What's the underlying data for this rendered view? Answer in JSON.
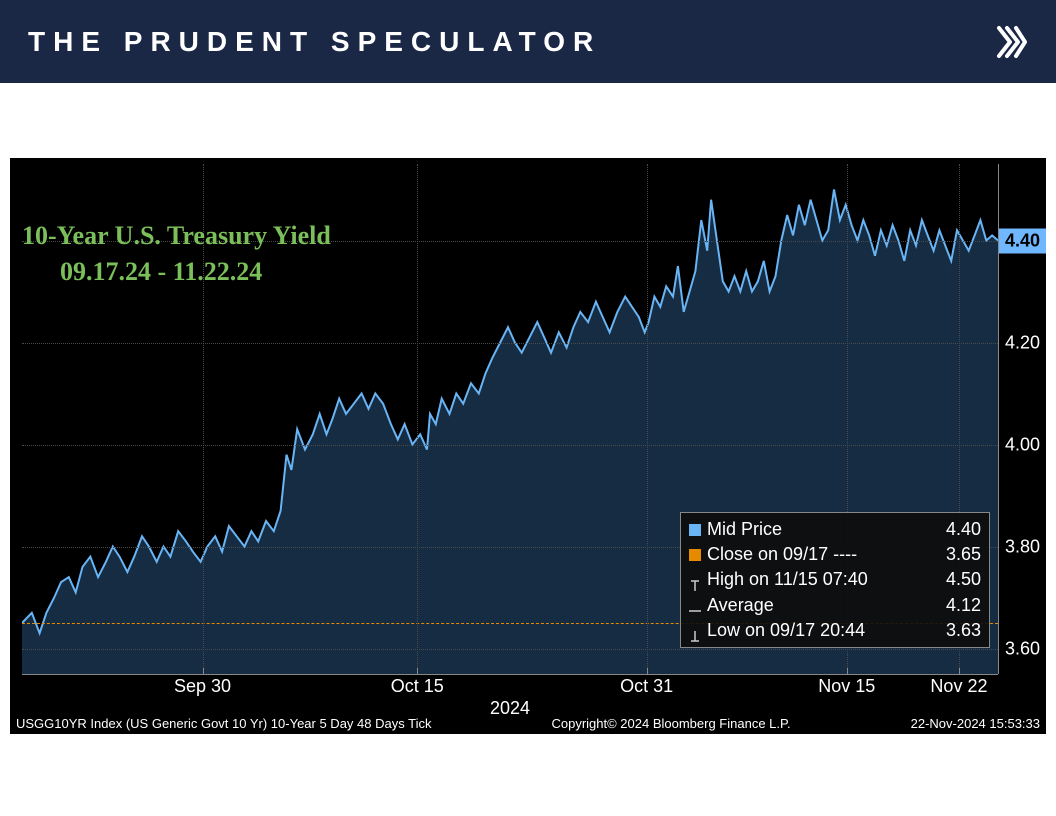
{
  "header": {
    "brand": "THE PRUDENT SPECULATOR"
  },
  "chart": {
    "type": "line-area",
    "title_line1": "10-Year U.S. Treasury Yield",
    "title_line2": "09.17.24 - 11.22.24",
    "title_color": "#7bbf5a",
    "title_fontsize": 26,
    "background_color": "#000000",
    "line_color": "#69b4f5",
    "area_fill_color": "rgba(40,80,120,0.55)",
    "grid_color": "#4a4a4a",
    "baseline_color": "#e68a00",
    "axis_label_color": "#ffffff",
    "axis_fontsize": 18,
    "current_badge_bg": "#6fb8ff",
    "current_badge_value": "4.40",
    "y_axis": {
      "min": 3.55,
      "max": 4.55,
      "ticks": [
        3.6,
        3.8,
        4.0,
        4.2,
        4.4
      ],
      "tick_labels": [
        "3.60",
        "3.80",
        "4.00",
        "4.20",
        "4.40"
      ]
    },
    "x_axis": {
      "ticks": [
        {
          "pos": 0.185,
          "label": "Sep 30"
        },
        {
          "pos": 0.405,
          "label": "Oct 15"
        },
        {
          "pos": 0.64,
          "label": "Oct 31"
        },
        {
          "pos": 0.845,
          "label": "Nov 15"
        },
        {
          "pos": 0.96,
          "label": "Nov 22"
        }
      ],
      "year_label": "2024",
      "year_pos": 0.5
    },
    "baseline_value": 3.65,
    "series": [
      [
        0.0,
        3.65
      ],
      [
        0.01,
        3.67
      ],
      [
        0.018,
        3.63
      ],
      [
        0.025,
        3.67
      ],
      [
        0.033,
        3.7
      ],
      [
        0.04,
        3.73
      ],
      [
        0.048,
        3.74
      ],
      [
        0.055,
        3.71
      ],
      [
        0.062,
        3.76
      ],
      [
        0.07,
        3.78
      ],
      [
        0.078,
        3.74
      ],
      [
        0.086,
        3.77
      ],
      [
        0.093,
        3.8
      ],
      [
        0.1,
        3.78
      ],
      [
        0.108,
        3.75
      ],
      [
        0.115,
        3.78
      ],
      [
        0.123,
        3.82
      ],
      [
        0.13,
        3.8
      ],
      [
        0.138,
        3.77
      ],
      [
        0.145,
        3.8
      ],
      [
        0.152,
        3.78
      ],
      [
        0.16,
        3.83
      ],
      [
        0.168,
        3.81
      ],
      [
        0.175,
        3.79
      ],
      [
        0.183,
        3.77
      ],
      [
        0.19,
        3.8
      ],
      [
        0.198,
        3.82
      ],
      [
        0.205,
        3.79
      ],
      [
        0.212,
        3.84
      ],
      [
        0.22,
        3.82
      ],
      [
        0.228,
        3.8
      ],
      [
        0.235,
        3.83
      ],
      [
        0.242,
        3.81
      ],
      [
        0.25,
        3.85
      ],
      [
        0.258,
        3.83
      ],
      [
        0.265,
        3.87
      ],
      [
        0.271,
        3.98
      ],
      [
        0.276,
        3.95
      ],
      [
        0.282,
        4.03
      ],
      [
        0.29,
        3.99
      ],
      [
        0.298,
        4.02
      ],
      [
        0.305,
        4.06
      ],
      [
        0.312,
        4.02
      ],
      [
        0.318,
        4.05
      ],
      [
        0.325,
        4.09
      ],
      [
        0.332,
        4.06
      ],
      [
        0.34,
        4.08
      ],
      [
        0.348,
        4.1
      ],
      [
        0.355,
        4.07
      ],
      [
        0.362,
        4.1
      ],
      [
        0.37,
        4.08
      ],
      [
        0.378,
        4.04
      ],
      [
        0.385,
        4.01
      ],
      [
        0.392,
        4.04
      ],
      [
        0.4,
        4.0
      ],
      [
        0.408,
        4.02
      ],
      [
        0.415,
        3.99
      ],
      [
        0.418,
        4.06
      ],
      [
        0.424,
        4.04
      ],
      [
        0.43,
        4.09
      ],
      [
        0.438,
        4.06
      ],
      [
        0.445,
        4.1
      ],
      [
        0.452,
        4.08
      ],
      [
        0.46,
        4.12
      ],
      [
        0.468,
        4.1
      ],
      [
        0.475,
        4.14
      ],
      [
        0.482,
        4.17
      ],
      [
        0.49,
        4.2
      ],
      [
        0.498,
        4.23
      ],
      [
        0.505,
        4.2
      ],
      [
        0.512,
        4.18
      ],
      [
        0.52,
        4.21
      ],
      [
        0.528,
        4.24
      ],
      [
        0.535,
        4.21
      ],
      [
        0.542,
        4.18
      ],
      [
        0.55,
        4.22
      ],
      [
        0.558,
        4.19
      ],
      [
        0.565,
        4.23
      ],
      [
        0.572,
        4.26
      ],
      [
        0.58,
        4.24
      ],
      [
        0.588,
        4.28
      ],
      [
        0.595,
        4.25
      ],
      [
        0.602,
        4.22
      ],
      [
        0.61,
        4.26
      ],
      [
        0.618,
        4.29
      ],
      [
        0.625,
        4.27
      ],
      [
        0.632,
        4.25
      ],
      [
        0.638,
        4.22
      ],
      [
        0.642,
        4.24
      ],
      [
        0.648,
        4.29
      ],
      [
        0.654,
        4.27
      ],
      [
        0.66,
        4.31
      ],
      [
        0.667,
        4.29
      ],
      [
        0.672,
        4.35
      ],
      [
        0.678,
        4.26
      ],
      [
        0.684,
        4.3
      ],
      [
        0.69,
        4.34
      ],
      [
        0.696,
        4.44
      ],
      [
        0.702,
        4.38
      ],
      [
        0.706,
        4.48
      ],
      [
        0.712,
        4.4
      ],
      [
        0.718,
        4.32
      ],
      [
        0.724,
        4.3
      ],
      [
        0.73,
        4.33
      ],
      [
        0.736,
        4.3
      ],
      [
        0.742,
        4.34
      ],
      [
        0.748,
        4.3
      ],
      [
        0.754,
        4.32
      ],
      [
        0.76,
        4.36
      ],
      [
        0.766,
        4.3
      ],
      [
        0.772,
        4.33
      ],
      [
        0.778,
        4.4
      ],
      [
        0.784,
        4.45
      ],
      [
        0.79,
        4.41
      ],
      [
        0.796,
        4.47
      ],
      [
        0.802,
        4.43
      ],
      [
        0.808,
        4.48
      ],
      [
        0.814,
        4.44
      ],
      [
        0.82,
        4.4
      ],
      [
        0.826,
        4.42
      ],
      [
        0.832,
        4.5
      ],
      [
        0.838,
        4.44
      ],
      [
        0.844,
        4.47
      ],
      [
        0.85,
        4.43
      ],
      [
        0.856,
        4.4
      ],
      [
        0.862,
        4.44
      ],
      [
        0.868,
        4.41
      ],
      [
        0.874,
        4.37
      ],
      [
        0.88,
        4.42
      ],
      [
        0.886,
        4.39
      ],
      [
        0.892,
        4.43
      ],
      [
        0.898,
        4.4
      ],
      [
        0.904,
        4.36
      ],
      [
        0.91,
        4.42
      ],
      [
        0.916,
        4.39
      ],
      [
        0.922,
        4.44
      ],
      [
        0.928,
        4.41
      ],
      [
        0.934,
        4.38
      ],
      [
        0.94,
        4.42
      ],
      [
        0.946,
        4.39
      ],
      [
        0.952,
        4.36
      ],
      [
        0.958,
        4.42
      ],
      [
        0.964,
        4.4
      ],
      [
        0.97,
        4.38
      ],
      [
        0.976,
        4.41
      ],
      [
        0.982,
        4.44
      ],
      [
        0.988,
        4.4
      ],
      [
        0.994,
        4.41
      ],
      [
        1.0,
        4.4
      ]
    ],
    "info_box": {
      "rows": [
        {
          "marker": "square",
          "marker_color": "#69b4f5",
          "label": "Mid Price",
          "value": "4.40"
        },
        {
          "marker": "square",
          "marker_color": "#e68a00",
          "label": "Close on 09/17 ----",
          "value": "3.65"
        },
        {
          "marker": "high",
          "marker_color": "#cccccc",
          "label": "High on 11/15 07:40",
          "value": "4.50"
        },
        {
          "marker": "line",
          "marker_color": "#cccccc",
          "label": "Average",
          "value": "4.12"
        },
        {
          "marker": "low",
          "marker_color": "#cccccc",
          "label": "Low on 09/17 20:44",
          "value": "3.63"
        }
      ]
    },
    "footer": {
      "left": "USGG10YR Index (US Generic Govt 10 Yr) 10-Year 5 Day 48 Days  Tick",
      "center": "Copyright© 2024 Bloomberg Finance L.P.",
      "right": "22-Nov-2024 15:53:33"
    }
  }
}
